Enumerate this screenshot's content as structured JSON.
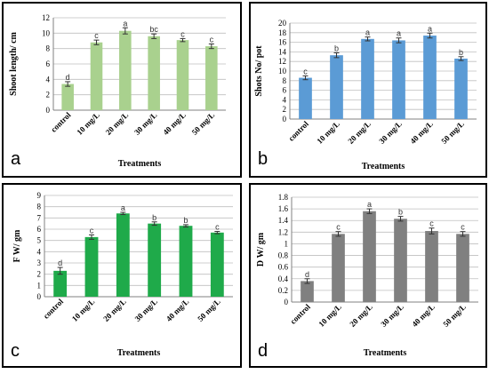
{
  "chart_data": [
    {
      "id": "a",
      "type": "bar",
      "panel_label": "a",
      "categories": [
        "control",
        "10 mg/L",
        "20 mg/L",
        "30 mg/L",
        "40 mg/L",
        "50 mg/L"
      ],
      "values": [
        3.4,
        8.8,
        10.3,
        9.6,
        9.1,
        8.3
      ],
      "errors": [
        0.3,
        0.3,
        0.4,
        0.3,
        0.2,
        0.3
      ],
      "letters": [
        "d",
        "c",
        "a",
        "bc",
        "c",
        "c"
      ],
      "xlabel": "Treatments",
      "ylabel": "Shoot length/ cm",
      "ylim": [
        0,
        12
      ],
      "yticks": [
        0,
        2,
        4,
        6,
        8,
        10,
        12
      ],
      "color": "#a9d18e",
      "grid": true
    },
    {
      "id": "b",
      "type": "bar",
      "panel_label": "b",
      "categories": [
        "control",
        "10 mg/L",
        "20 mg/L",
        "30 mg/L",
        "40 mg/L",
        "50 mg/L"
      ],
      "values": [
        8.6,
        13.3,
        16.7,
        16.4,
        17.4,
        12.6
      ],
      "errors": [
        0.4,
        0.5,
        0.4,
        0.5,
        0.5,
        0.4
      ],
      "letters": [
        "c",
        "b",
        "a",
        "a",
        "a",
        "b"
      ],
      "xlabel": "Treatments",
      "ylabel": "Shots No/ pot",
      "ylim": [
        0,
        20
      ],
      "yticks": [
        0,
        2,
        4,
        6,
        8,
        10,
        12,
        14,
        16,
        18,
        20
      ],
      "color": "#5b9bd5",
      "grid": true
    },
    {
      "id": "c",
      "type": "bar",
      "panel_label": "c",
      "categories": [
        "control",
        "10 mg/L",
        "20 mg/L",
        "30 mg/L",
        "40 mg/L",
        "50 mg/L"
      ],
      "values": [
        2.3,
        5.3,
        7.4,
        6.5,
        6.3,
        5.7
      ],
      "errors": [
        0.3,
        0.2,
        0.1,
        0.15,
        0.1,
        0.1
      ],
      "letters": [
        "d",
        "c",
        "a",
        "b",
        "b",
        "c"
      ],
      "xlabel": "Treatments",
      "ylabel": "F W/ gm",
      "ylim": [
        0,
        9
      ],
      "yticks": [
        0,
        1,
        2,
        3,
        4,
        5,
        6,
        7,
        8,
        9
      ],
      "color": "#1faa4a",
      "grid": true
    },
    {
      "id": "d",
      "type": "bar",
      "panel_label": "d",
      "categories": [
        "control",
        "10 mg/L",
        "20 mg/L",
        "30 mg/L",
        "40 mg/L",
        "50 mg/L"
      ],
      "values": [
        0.36,
        1.17,
        1.56,
        1.43,
        1.22,
        1.17
      ],
      "errors": [
        0.04,
        0.04,
        0.04,
        0.04,
        0.05,
        0.04
      ],
      "letters": [
        "d",
        "c",
        "a",
        "b",
        "c",
        "c"
      ],
      "xlabel": "Treatments",
      "ylabel": "D W/ gm",
      "ylim": [
        0,
        1.8
      ],
      "yticks": [
        "0",
        "0.2",
        "0.4",
        "0.6",
        "0.8",
        "1",
        "1.2",
        "1.4",
        "1.6",
        "1.8"
      ],
      "color": "#808080",
      "grid": true
    }
  ]
}
